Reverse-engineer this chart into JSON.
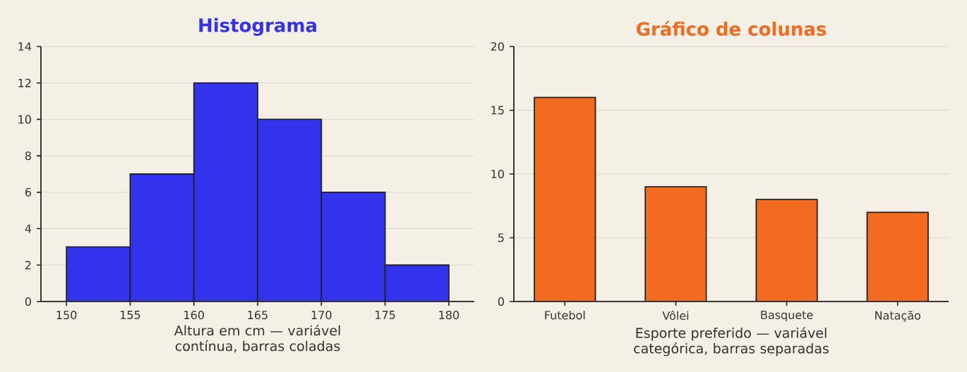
{
  "chart_data": [
    {
      "type": "histogram",
      "title": "Histograma",
      "xlabel": "Altura em cm — variável contínua, barras coladas",
      "bins": [
        150,
        155,
        160,
        165,
        170,
        175,
        180
      ],
      "values": [
        3,
        7,
        12,
        10,
        6,
        2
      ],
      "color": "#3333ee",
      "xlim": [
        148,
        182
      ],
      "xticks": [
        150,
        155,
        160,
        165,
        170,
        175,
        180
      ],
      "ylim": [
        0,
        14
      ],
      "yticks": [
        0,
        2,
        4,
        6,
        8,
        10,
        12,
        14
      ],
      "grid": "y"
    },
    {
      "type": "bar",
      "title": "Gráfico de colunas",
      "xlabel": "Esporte preferido — variável categórica, barras separadas",
      "categories": [
        "Futebol",
        "Vôlei",
        "Basquete",
        "Natação"
      ],
      "values": [
        16,
        9,
        8,
        7
      ],
      "color": "#f26b21",
      "ylim": [
        0,
        20
      ],
      "yticks": [
        0,
        5,
        10,
        15,
        20
      ],
      "grid": "y"
    }
  ]
}
